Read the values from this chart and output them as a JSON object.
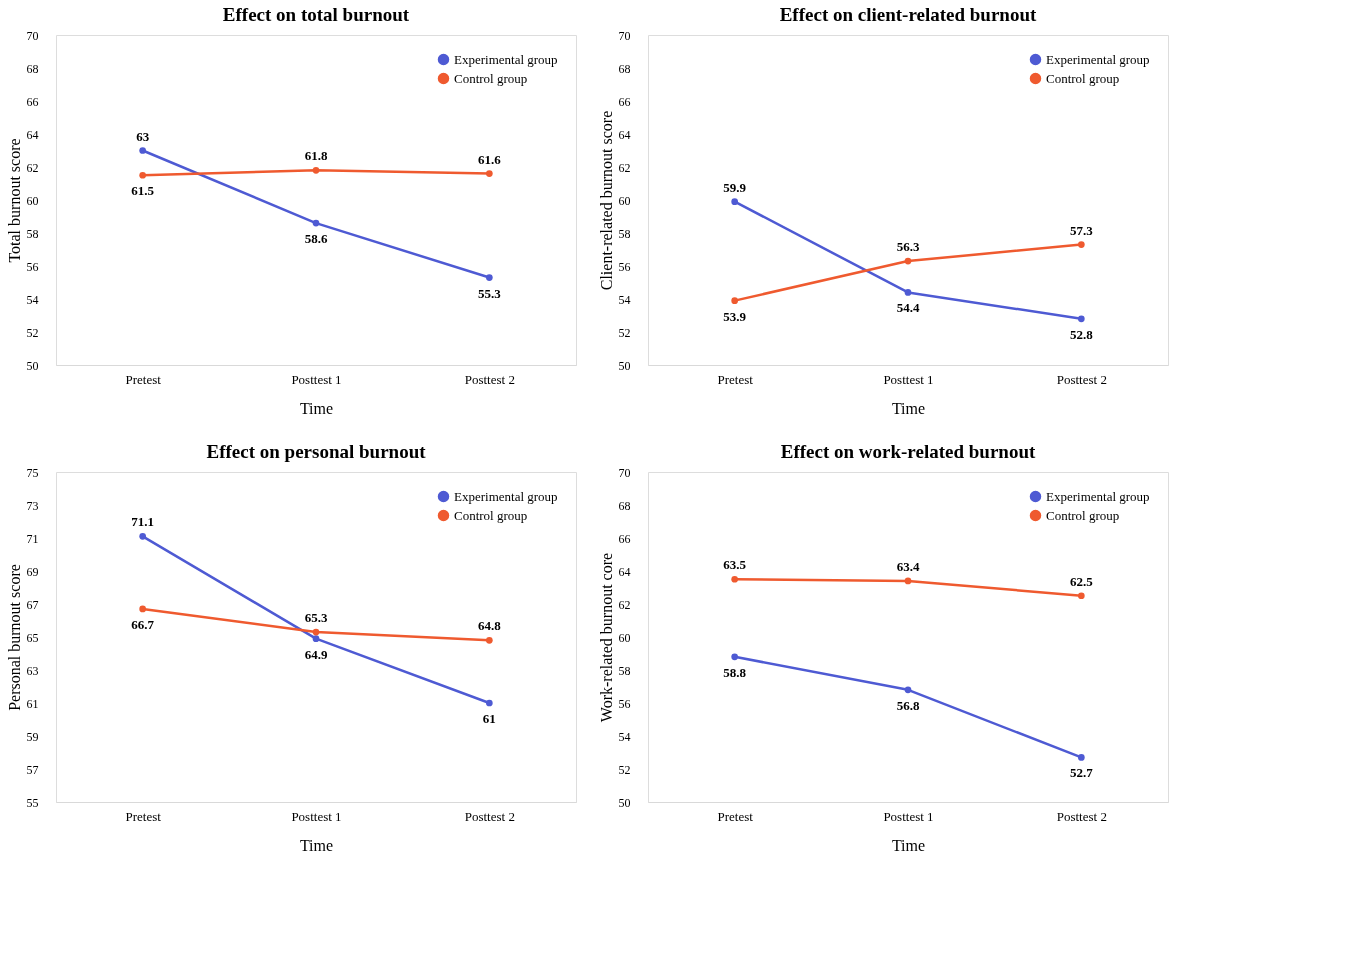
{
  "chart_data": [
    {
      "type": "line",
      "title": "Effect on total burnout",
      "xlabel": "Time",
      "ylabel": "Total burnout score",
      "categories": [
        "Pretest",
        "Posttest 1",
        "Posttest 2"
      ],
      "ylim": [
        50,
        70
      ],
      "yticks": [
        50,
        52,
        54,
        56,
        58,
        60,
        62,
        64,
        66,
        68,
        70
      ],
      "legend": "top right",
      "marker": "circle",
      "line_style": "solid",
      "data_labels": true,
      "grid": false,
      "series": [
        {
          "name": "Experimental group",
          "color": "#4e5ad3",
          "values": [
            63,
            58.6,
            55.3
          ]
        },
        {
          "name": "Control group",
          "color": "#ef5a2f",
          "values": [
            61.5,
            61.8,
            61.6
          ]
        }
      ]
    },
    {
      "type": "line",
      "title": "Effect on client-related burnout",
      "xlabel": "Time",
      "ylabel": "Client-related burnout score",
      "categories": [
        "Pretest",
        "Posttest 1",
        "Posttest 2"
      ],
      "ylim": [
        50,
        70
      ],
      "yticks": [
        50,
        52,
        54,
        56,
        58,
        60,
        62,
        64,
        66,
        68,
        70
      ],
      "legend": "top right",
      "marker": "circle",
      "line_style": "solid",
      "data_labels": true,
      "grid": false,
      "series": [
        {
          "name": "Experimental group",
          "color": "#4e5ad3",
          "values": [
            59.9,
            54.4,
            52.8
          ]
        },
        {
          "name": "Control group",
          "color": "#ef5a2f",
          "values": [
            53.9,
            56.3,
            57.3
          ]
        }
      ]
    },
    {
      "type": "line",
      "title": "Effect on personal burnout",
      "xlabel": "Time",
      "ylabel": "Personal burnout score",
      "categories": [
        "Pretest",
        "Posttest 1",
        "Posttest 2"
      ],
      "ylim": [
        55,
        75
      ],
      "yticks": [
        55,
        57,
        59,
        61,
        63,
        65,
        67,
        69,
        71,
        73,
        75
      ],
      "legend": "top right",
      "marker": "circle",
      "line_style": "solid",
      "data_labels": true,
      "grid": false,
      "series": [
        {
          "name": "Experimental group",
          "color": "#4e5ad3",
          "values": [
            71.1,
            64.9,
            61
          ]
        },
        {
          "name": "Control group",
          "color": "#ef5a2f",
          "values": [
            66.7,
            65.3,
            64.8
          ]
        }
      ]
    },
    {
      "type": "line",
      "title": "Effect on work-related burnout",
      "xlabel": "Time",
      "ylabel": "Work-related burnout core",
      "categories": [
        "Pretest",
        "Posttest 1",
        "Posttest 2"
      ],
      "ylim": [
        50,
        70
      ],
      "yticks": [
        50,
        52,
        54,
        56,
        58,
        60,
        62,
        64,
        66,
        68,
        70
      ],
      "legend": "top right",
      "marker": "circle",
      "line_style": "solid",
      "data_labels": true,
      "grid": false,
      "series": [
        {
          "name": "Experimental group",
          "color": "#4e5ad3",
          "values": [
            58.8,
            56.8,
            52.7
          ]
        },
        {
          "name": "Control group",
          "color": "#ef5a2f",
          "values": [
            63.5,
            63.4,
            62.5
          ]
        }
      ]
    }
  ]
}
